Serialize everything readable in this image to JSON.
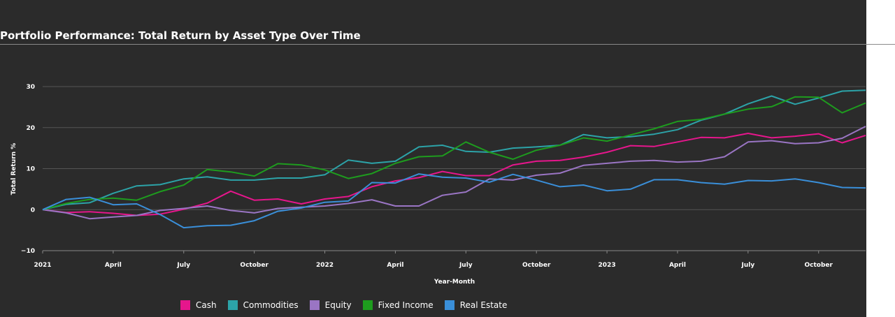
{
  "title": "Portfolio Performance: Total Return by Asset Type Over Time",
  "chart_data": {
    "type": "line",
    "xlabel": "Year-Month",
    "ylabel": "Total Return %",
    "ylim": [
      -10,
      30
    ],
    "yticks": [
      -10,
      0,
      10,
      20,
      30
    ],
    "ytick_labels": [
      "−10",
      "0",
      "10",
      "20",
      "30"
    ],
    "grid": true,
    "legend_position": "bottom",
    "x_ticks": [
      {
        "date": "2021-01",
        "label": "2021"
      },
      {
        "date": "2021-04",
        "label": "April"
      },
      {
        "date": "2021-07",
        "label": "July"
      },
      {
        "date": "2021-10",
        "label": "October"
      },
      {
        "date": "2022-01",
        "label": "2022"
      },
      {
        "date": "2022-04",
        "label": "April"
      },
      {
        "date": "2022-07",
        "label": "July"
      },
      {
        "date": "2022-10",
        "label": "October"
      },
      {
        "date": "2023-01",
        "label": "2023"
      },
      {
        "date": "2023-04",
        "label": "April"
      },
      {
        "date": "2023-07",
        "label": "July"
      },
      {
        "date": "2023-10",
        "label": "October"
      }
    ],
    "x": [
      "2021-01",
      "2021-02",
      "2021-03",
      "2021-04",
      "2021-05",
      "2021-06",
      "2021-07",
      "2021-08",
      "2021-09",
      "2021-10",
      "2021-11",
      "2021-12",
      "2022-01",
      "2022-02",
      "2022-03",
      "2022-04",
      "2022-05",
      "2022-06",
      "2022-07",
      "2022-08",
      "2022-09",
      "2022-10",
      "2022-11",
      "2022-12",
      "2023-01",
      "2023-02",
      "2023-03",
      "2023-04",
      "2023-05",
      "2023-06",
      "2023-07",
      "2023-08",
      "2023-09",
      "2023-10",
      "2023-11",
      "2023-12"
    ],
    "series": [
      {
        "name": "Cash",
        "color": "#e6168c",
        "values": [
          0.0,
          -0.7,
          -0.5,
          -0.9,
          -1.4,
          -1.1,
          0.1,
          1.6,
          4.5,
          2.3,
          2.6,
          1.4,
          2.6,
          3.2,
          5.6,
          7.0,
          7.8,
          9.3,
          8.3,
          8.3,
          10.9,
          11.8,
          12.0,
          12.8,
          14.0,
          15.6,
          15.4,
          16.5,
          17.6,
          17.5,
          18.6,
          17.5,
          17.9,
          18.5,
          16.3,
          18.1
        ]
      },
      {
        "name": "Commodities",
        "color": "#2ca3a8",
        "values": [
          0.0,
          1.3,
          1.7,
          4.0,
          5.8,
          6.1,
          7.5,
          8.0,
          7.2,
          7.2,
          7.7,
          7.7,
          8.5,
          12.1,
          11.3,
          11.8,
          15.3,
          15.7,
          14.2,
          14.0,
          15.0,
          15.3,
          15.7,
          18.3,
          17.5,
          17.8,
          18.4,
          19.5,
          21.8,
          23.3,
          25.8,
          27.7,
          25.7,
          27.2,
          28.9,
          29.1
        ]
      },
      {
        "name": "Equity",
        "color": "#9a75c4",
        "values": [
          0.0,
          -0.8,
          -2.2,
          -1.8,
          -1.4,
          -0.2,
          0.3,
          0.9,
          -0.2,
          -0.8,
          0.3,
          0.6,
          0.9,
          1.5,
          2.4,
          0.9,
          0.9,
          3.5,
          4.3,
          7.5,
          7.2,
          8.4,
          8.9,
          10.8,
          11.3,
          11.8,
          12.0,
          11.6,
          11.8,
          12.9,
          16.5,
          16.8,
          16.1,
          16.3,
          17.4,
          20.3
        ]
      },
      {
        "name": "Fixed Income",
        "color": "#1e9c1e",
        "values": [
          0.0,
          1.5,
          2.5,
          2.8,
          2.3,
          4.4,
          6.0,
          9.8,
          9.2,
          8.2,
          11.2,
          10.9,
          9.7,
          7.6,
          8.8,
          11.3,
          12.9,
          13.1,
          16.5,
          14.0,
          12.3,
          14.5,
          15.7,
          17.5,
          16.7,
          18.2,
          19.7,
          21.5,
          22.0,
          23.3,
          24.5,
          25.1,
          27.5,
          27.4,
          23.6,
          26.0
        ]
      },
      {
        "name": "Real Estate",
        "color": "#3a8fd9",
        "values": [
          0.0,
          2.5,
          3.0,
          1.2,
          1.4,
          -1.2,
          -4.4,
          -3.9,
          -3.8,
          -2.7,
          -0.4,
          0.4,
          1.8,
          2.1,
          6.6,
          6.5,
          8.7,
          7.9,
          7.7,
          6.7,
          8.6,
          7.2,
          5.6,
          6.0,
          4.6,
          5.0,
          7.3,
          7.3,
          6.6,
          6.2,
          7.1,
          7.0,
          7.5,
          6.6,
          5.4,
          5.3
        ]
      }
    ]
  }
}
